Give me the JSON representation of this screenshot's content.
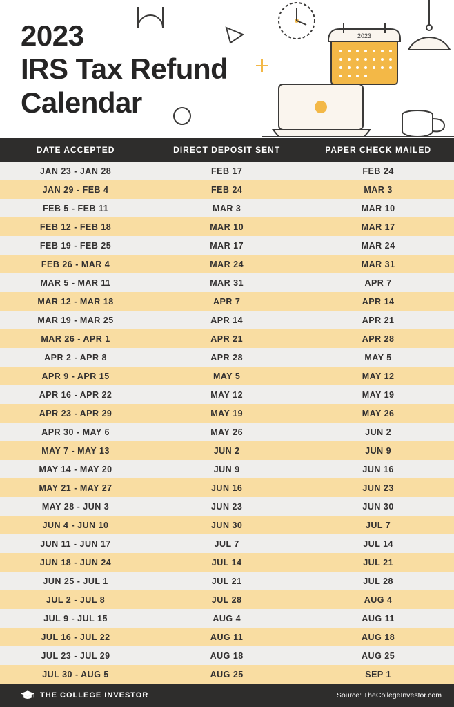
{
  "header": {
    "title_line1": "2023",
    "title_line2": "IRS Tax Refund",
    "title_line3": "Calendar",
    "calendar_year": "2023"
  },
  "table": {
    "columns": [
      "DATE ACCEPTED",
      "DIRECT DEPOSIT SENT",
      "PAPER CHECK MAILED"
    ],
    "rows": [
      [
        "JAN 23 - JAN 28",
        "FEB 17",
        "FEB 24"
      ],
      [
        "JAN 29 - FEB 4",
        "FEB 24",
        "MAR 3"
      ],
      [
        "FEB 5 - FEB 11",
        "MAR 3",
        "MAR 10"
      ],
      [
        "FEB 12 - FEB 18",
        "MAR 10",
        "MAR 17"
      ],
      [
        "FEB 19 - FEB 25",
        "MAR 17",
        "MAR 24"
      ],
      [
        "FEB 26 - MAR 4",
        "MAR 24",
        "MAR 31"
      ],
      [
        "MAR 5 - MAR 11",
        "MAR 31",
        "APR 7"
      ],
      [
        "MAR 12 - MAR 18",
        "APR 7",
        "APR 14"
      ],
      [
        "MAR 19 - MAR 25",
        "APR 14",
        "APR 21"
      ],
      [
        "MAR 26 - APR 1",
        "APR 21",
        "APR 28"
      ],
      [
        "APR 2 - APR 8",
        "APR 28",
        "MAY 5"
      ],
      [
        "APR 9 - APR 15",
        "MAY 5",
        "MAY 12"
      ],
      [
        "APR 16 - APR 22",
        "MAY 12",
        "MAY 19"
      ],
      [
        "APR 23 - APR 29",
        "MAY 19",
        "MAY 26"
      ],
      [
        "APR 30 - MAY 6",
        "MAY 26",
        "JUN 2"
      ],
      [
        "MAY 7 - MAY 13",
        "JUN 2",
        "JUN 9"
      ],
      [
        "MAY 14 - MAY 20",
        "JUN 9",
        "JUN 16"
      ],
      [
        "MAY 21 - MAY 27",
        "JUN 16",
        "JUN 23"
      ],
      [
        "MAY 28 - JUN 3",
        "JUN 23",
        "JUN 30"
      ],
      [
        "JUN 4 - JUN 10",
        "JUN 30",
        "JUL 7"
      ],
      [
        "JUN 11 - JUN 17",
        "JUL 7",
        "JUL 14"
      ],
      [
        "JUN 18 - JUN 24",
        "JUL 14",
        "JUL 21"
      ],
      [
        "JUN 25 - JUL 1",
        "JUL 21",
        "JUL 28"
      ],
      [
        "JUL 2 - JUL 8",
        "JUL 28",
        "AUG 4"
      ],
      [
        "JUL 9 - JUL 15",
        "AUG 4",
        "AUG 11"
      ],
      [
        "JUL 16 - JUL 22",
        "AUG 11",
        "AUG 18"
      ],
      [
        "JUL 23 - JUL 29",
        "AUG 18",
        "AUG 25"
      ],
      [
        "JUL 30 - AUG 5",
        "AUG 25",
        "SEP 1"
      ]
    ],
    "row_colors": {
      "odd": "#efeeec",
      "even": "#f9dda2"
    },
    "header_bg": "#2e2d2c",
    "header_text": "#ffffff",
    "cell_text": "#333131",
    "font_size_header": 12,
    "font_size_cell": 12.5
  },
  "footer": {
    "brand": "THE COLLEGE INVESTOR",
    "source": "Source: TheCollegeInvestor.com"
  },
  "palette": {
    "accent": "#f3b847",
    "dark": "#2e2d2c",
    "cream": "#faf5ee",
    "line": "#3b3a39"
  }
}
